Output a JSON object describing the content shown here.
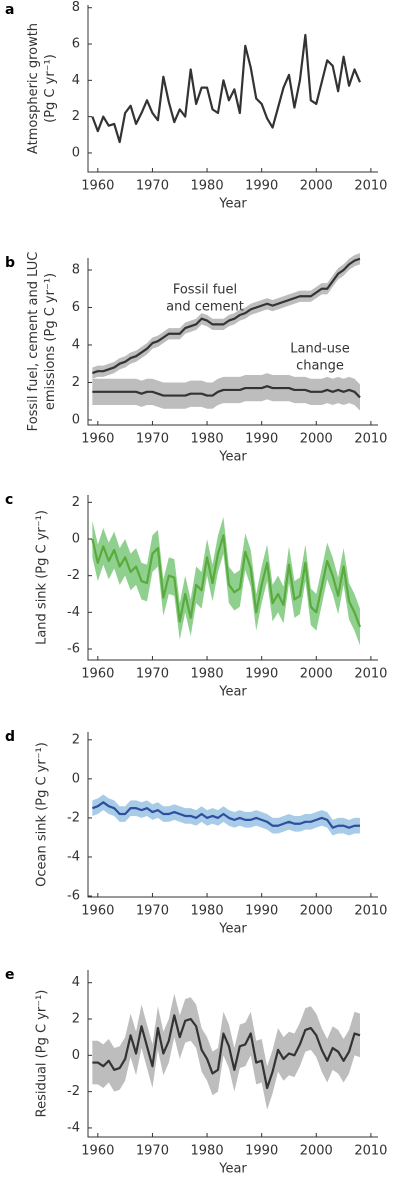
{
  "chart_data": [
    {
      "type": "line",
      "panel": "a",
      "ylabel": [
        "Atmospheric growth",
        "(Pg C yr⁻¹)"
      ],
      "xlabel": "Year",
      "x": [
        1959,
        1960,
        1961,
        1962,
        1963,
        1964,
        1965,
        1966,
        1967,
        1968,
        1969,
        1970,
        1971,
        1972,
        1973,
        1974,
        1975,
        1976,
        1977,
        1978,
        1979,
        1980,
        1981,
        1982,
        1983,
        1984,
        1985,
        1986,
        1987,
        1988,
        1989,
        1990,
        1991,
        1992,
        1993,
        1994,
        1995,
        1996,
        1997,
        1998,
        1999,
        2000,
        2001,
        2002,
        2003,
        2004,
        2005,
        2006,
        2007,
        2008
      ],
      "xlim": [
        1958.2,
        2011.3
      ],
      "xticks": [
        1960,
        1970,
        1980,
        1990,
        2000,
        2010
      ],
      "ylim": [
        -1.05,
        8.15
      ],
      "yticks": [
        0,
        2,
        4,
        6,
        8
      ],
      "series": [
        {
          "color": "#333333",
          "values": [
            2.0,
            1.2,
            2.0,
            1.5,
            1.6,
            0.6,
            2.2,
            2.6,
            1.6,
            2.2,
            2.9,
            2.2,
            1.8,
            4.2,
            2.8,
            1.7,
            2.4,
            2.0,
            4.6,
            2.7,
            3.6,
            3.6,
            2.4,
            2.2,
            4.0,
            2.9,
            3.5,
            2.2,
            5.9,
            4.7,
            3.0,
            2.7,
            1.9,
            1.4,
            2.5,
            3.6,
            4.3,
            2.5,
            4.0,
            6.5,
            2.9,
            2.7,
            3.9,
            5.1,
            4.8,
            3.4,
            5.3,
            3.7,
            4.6,
            3.9
          ]
        }
      ]
    },
    {
      "type": "band",
      "panel": "b",
      "ylabel": [
        "Fossil fuel, cement and LUC",
        "emissions (Pg C yr⁻¹)"
      ],
      "xlabel": "Year",
      "annotations": [
        [
          "Fossil fuel",
          "and cement"
        ],
        [
          "Land-use",
          "change"
        ]
      ],
      "x": [
        1959,
        1960,
        1961,
        1962,
        1963,
        1964,
        1965,
        1966,
        1967,
        1968,
        1969,
        1970,
        1971,
        1972,
        1973,
        1974,
        1975,
        1976,
        1977,
        1978,
        1979,
        1980,
        1981,
        1982,
        1983,
        1984,
        1985,
        1986,
        1987,
        1988,
        1989,
        1990,
        1991,
        1992,
        1993,
        1994,
        1995,
        1996,
        1997,
        1998,
        1999,
        2000,
        2001,
        2002,
        2003,
        2004,
        2005,
        2006,
        2007,
        2008
      ],
      "xlim": [
        1958.2,
        2011.3
      ],
      "xticks": [
        1960,
        1970,
        1980,
        1990,
        2000,
        2010
      ],
      "ylim": [
        -0.27,
        8.64
      ],
      "yticks": [
        0,
        2,
        4,
        6,
        8
      ],
      "series": [
        {
          "color": "#333333",
          "band_color": "#bdbdbd",
          "error": 0.3,
          "values": [
            2.5,
            2.6,
            2.6,
            2.7,
            2.8,
            3.0,
            3.1,
            3.3,
            3.4,
            3.6,
            3.8,
            4.1,
            4.2,
            4.4,
            4.6,
            4.6,
            4.6,
            4.9,
            5.0,
            5.1,
            5.4,
            5.3,
            5.1,
            5.1,
            5.1,
            5.3,
            5.4,
            5.6,
            5.7,
            5.9,
            6.0,
            6.1,
            6.2,
            6.1,
            6.2,
            6.3,
            6.4,
            6.5,
            6.6,
            6.6,
            6.6,
            6.8,
            7.0,
            7.0,
            7.4,
            7.8,
            8.0,
            8.3,
            8.5,
            8.6
          ]
        },
        {
          "color": "#333333",
          "band_color": "#bdbdbd",
          "error": 0.7,
          "values": [
            1.5,
            1.5,
            1.5,
            1.5,
            1.5,
            1.5,
            1.5,
            1.5,
            1.5,
            1.4,
            1.5,
            1.5,
            1.4,
            1.3,
            1.3,
            1.3,
            1.3,
            1.3,
            1.4,
            1.4,
            1.4,
            1.3,
            1.3,
            1.5,
            1.6,
            1.6,
            1.6,
            1.6,
            1.7,
            1.7,
            1.7,
            1.7,
            1.8,
            1.7,
            1.7,
            1.7,
            1.7,
            1.6,
            1.6,
            1.6,
            1.5,
            1.5,
            1.5,
            1.6,
            1.5,
            1.6,
            1.5,
            1.6,
            1.5,
            1.2
          ]
        }
      ]
    },
    {
      "type": "band",
      "panel": "c",
      "ylabel": [
        "Land sink (Pg C yr⁻¹)"
      ],
      "xlabel": "Year",
      "x": [
        1959,
        1960,
        1961,
        1962,
        1963,
        1964,
        1965,
        1966,
        1967,
        1968,
        1969,
        1970,
        1971,
        1972,
        1973,
        1974,
        1975,
        1976,
        1977,
        1978,
        1979,
        1980,
        1981,
        1982,
        1983,
        1984,
        1985,
        1986,
        1987,
        1988,
        1989,
        1990,
        1991,
        1992,
        1993,
        1994,
        1995,
        1996,
        1997,
        1998,
        1999,
        2000,
        2001,
        2002,
        2003,
        2004,
        2005,
        2006,
        2007,
        2008
      ],
      "xlim": [
        1958.2,
        2011.3
      ],
      "xticks": [
        1960,
        1970,
        1980,
        1990,
        2000,
        2010
      ],
      "ylim": [
        -6.6,
        2.4
      ],
      "yticks": [
        -6,
        -4,
        -2,
        0,
        2
      ],
      "series": [
        {
          "color": "#5aaa3c",
          "band_color": "#8fd08f",
          "error": 1.0,
          "values": [
            0,
            -1.3,
            -0.4,
            -1.2,
            -0.6,
            -1.5,
            -1.0,
            -1.8,
            -1.5,
            -2.3,
            -2.4,
            -0.8,
            -0.5,
            -3.2,
            -2.0,
            -2.1,
            -4.5,
            -3.0,
            -4.3,
            -2.5,
            -2.8,
            -1.0,
            -2.4,
            -0.8,
            0.2,
            -2.5,
            -2.9,
            -2.7,
            -0.7,
            -1.6,
            -4.0,
            -2.5,
            -1.3,
            -3.5,
            -3.0,
            -3.6,
            -1.4,
            -3.3,
            -3.1,
            -1.3,
            -3.7,
            -4.0,
            -2.6,
            -1.2,
            -2.0,
            -3.1,
            -1.5,
            -3.4,
            -4.0,
            -4.8
          ]
        }
      ]
    },
    {
      "type": "band",
      "panel": "d",
      "ylabel": [
        "Ocean sink (Pg C yr⁻¹)"
      ],
      "xlabel": "Year",
      "x": [
        1959,
        1960,
        1961,
        1962,
        1963,
        1964,
        1965,
        1966,
        1967,
        1968,
        1969,
        1970,
        1971,
        1972,
        1973,
        1974,
        1975,
        1976,
        1977,
        1978,
        1979,
        1980,
        1981,
        1982,
        1983,
        1984,
        1985,
        1986,
        1987,
        1988,
        1989,
        1990,
        1991,
        1992,
        1993,
        1994,
        1995,
        1996,
        1997,
        1998,
        1999,
        2000,
        2001,
        2002,
        2003,
        2004,
        2005,
        2006,
        2007,
        2008
      ],
      "xlim": [
        1958.2,
        2011.3
      ],
      "xticks": [
        1960,
        1970,
        1980,
        1990,
        2000,
        2010
      ],
      "ylim": [
        -6.05,
        2.4
      ],
      "yticks": [
        -6,
        -4,
        -2,
        0,
        2
      ],
      "series": [
        {
          "color": "#2e4f9e",
          "band_color": "#a8cce8",
          "error": 0.4,
          "values": [
            -1.5,
            -1.4,
            -1.2,
            -1.4,
            -1.5,
            -1.8,
            -1.8,
            -1.5,
            -1.5,
            -1.6,
            -1.5,
            -1.7,
            -1.6,
            -1.8,
            -1.8,
            -1.7,
            -1.8,
            -1.9,
            -1.9,
            -2.0,
            -1.8,
            -2.0,
            -1.9,
            -2.0,
            -1.8,
            -2.0,
            -2.1,
            -2.0,
            -2.1,
            -2.1,
            -2.0,
            -2.1,
            -2.2,
            -2.4,
            -2.4,
            -2.3,
            -2.2,
            -2.3,
            -2.3,
            -2.2,
            -2.2,
            -2.1,
            -2.0,
            -2.1,
            -2.5,
            -2.4,
            -2.4,
            -2.5,
            -2.4,
            -2.4
          ]
        }
      ]
    },
    {
      "type": "band",
      "panel": "e",
      "ylabel": [
        "Residual (Pg C yr⁻¹)"
      ],
      "xlabel": "Year",
      "x": [
        1959,
        1960,
        1961,
        1962,
        1963,
        1964,
        1965,
        1966,
        1967,
        1968,
        1969,
        1970,
        1971,
        1972,
        1973,
        1974,
        1975,
        1976,
        1977,
        1978,
        1979,
        1980,
        1981,
        1982,
        1983,
        1984,
        1985,
        1986,
        1987,
        1988,
        1989,
        1990,
        1991,
        1992,
        1993,
        1994,
        1995,
        1996,
        1997,
        1998,
        1999,
        2000,
        2001,
        2002,
        2003,
        2004,
        2005,
        2006,
        2007,
        2008
      ],
      "xlim": [
        1958.2,
        2011.3
      ],
      "xticks": [
        1960,
        1970,
        1980,
        1990,
        2000,
        2010
      ],
      "ylim": [
        -4.5,
        4.7
      ],
      "yticks": [
        -4,
        -2,
        0,
        2,
        4
      ],
      "series": [
        {
          "color": "#333333",
          "band_color": "#bdbdbd",
          "error": 1.2,
          "values": [
            -0.4,
            -0.4,
            -0.6,
            -0.3,
            -0.8,
            -0.7,
            -0.2,
            1.1,
            0.1,
            1.6,
            0.5,
            -0.6,
            1.5,
            0.1,
            0.8,
            2.2,
            1.0,
            1.9,
            2.0,
            1.6,
            0.3,
            -0.2,
            -1.0,
            -0.8,
            1.2,
            0.5,
            -0.8,
            0.5,
            0.6,
            1.2,
            -0.4,
            -0.3,
            -1.8,
            -0.9,
            0.3,
            -0.2,
            0.1,
            0.0,
            0.6,
            1.4,
            1.5,
            1.1,
            0.3,
            -0.3,
            0.4,
            0.2,
            -0.3,
            0.2,
            1.2,
            1.1
          ]
        }
      ]
    }
  ]
}
